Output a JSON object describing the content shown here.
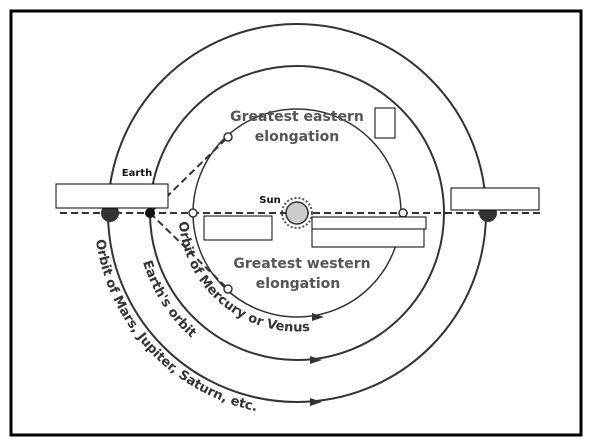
{
  "labels": {
    "earth": "Earth",
    "sun": "Sun",
    "eastern": [
      "Greatest eastern",
      "elongation"
    ],
    "western": [
      "Greatest western",
      "elongation"
    ],
    "inner_orbit": "Orbit of Mercury or Venus",
    "earth_orbit": "Earth's orbit",
    "outer_orbit": "Orbit of Mars, Jupiter, Saturn, etc."
  }
}
